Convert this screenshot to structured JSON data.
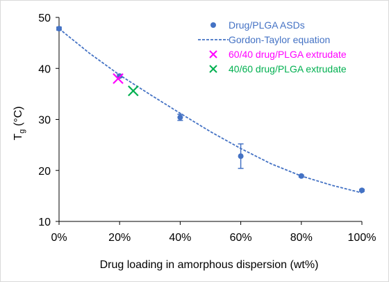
{
  "chart_data": {
    "type": "scatter",
    "xlabel": "Drug loading in amorphous dispersion (wt%)",
    "ylabel_main": "T",
    "ylabel_sub": "g",
    "ylabel_unit": " (°C)",
    "xlim": [
      0,
      100
    ],
    "ylim": [
      10,
      50
    ],
    "x_ticks": [
      0,
      20,
      40,
      60,
      80,
      100
    ],
    "x_tick_labels": [
      "0%",
      "20%",
      "40%",
      "60%",
      "80%",
      "100%"
    ],
    "y_ticks": [
      10,
      20,
      30,
      40,
      50
    ],
    "y_tick_labels": [
      "10",
      "20",
      "30",
      "40",
      "50"
    ],
    "grid": false,
    "legend_position": "top-right",
    "series": [
      {
        "name": "Drug/PLGA ASDs",
        "kind": "points",
        "color": "#4472c4",
        "x": [
          0,
          20,
          40,
          60,
          80,
          100
        ],
        "y": [
          47.8,
          38.5,
          30.4,
          22.8,
          18.9,
          16.1
        ],
        "err": [
          0.3,
          0.3,
          0.6,
          2.4,
          0.2,
          0.2
        ]
      },
      {
        "name": "Gordon-Taylor equation",
        "kind": "dashed-line",
        "color": "#4472c4",
        "x": [
          0,
          10,
          20,
          30,
          40,
          50,
          60,
          70,
          80,
          90,
          100
        ],
        "y": [
          47.8,
          43.0,
          38.7,
          34.9,
          31.2,
          27.6,
          24.3,
          21.3,
          18.9,
          17.1,
          15.6
        ]
      },
      {
        "name": "60/40 drug/PLGA extrudate",
        "kind": "x-marker",
        "color": "#ff00ff",
        "x": [
          19.5
        ],
        "y": [
          38.0
        ]
      },
      {
        "name": "40/60 drug/PLGA extrudate",
        "kind": "x-marker",
        "color": "#00b050",
        "x": [
          24.5
        ],
        "y": [
          35.6
        ]
      }
    ]
  }
}
